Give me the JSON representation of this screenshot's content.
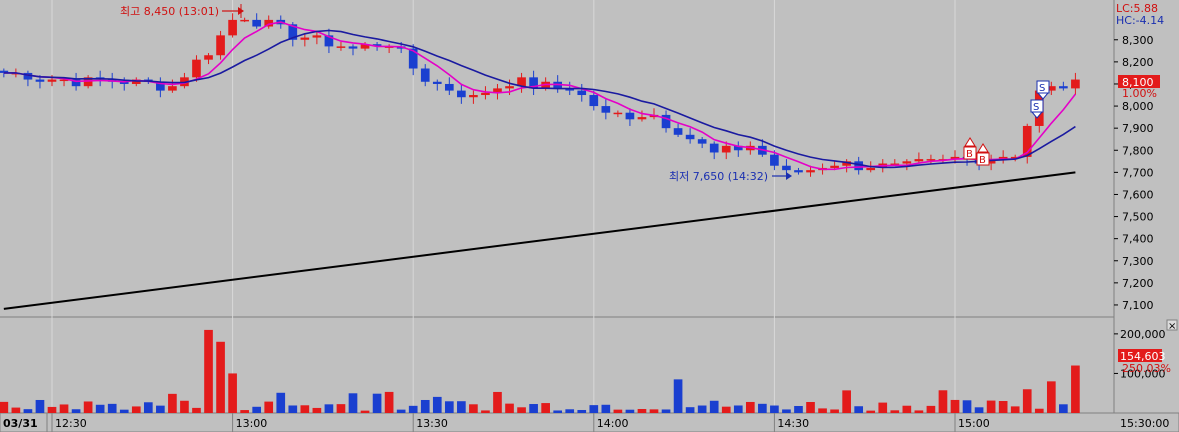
{
  "chart_data": [
    {
      "type": "candlestick",
      "panel": "price",
      "interval_minutes": 2,
      "x_start": "12:22",
      "x_end": "15:20",
      "ylim": [
        7050,
        8480
      ],
      "y_ticks": [
        7100,
        7200,
        7300,
        7400,
        7500,
        7600,
        7700,
        7800,
        7900,
        "8,000",
        8100,
        8200,
        8300
      ],
      "y_tick_labels": [
        "7,100",
        "7,200",
        "7,300",
        "7,400",
        "7,500",
        "7,600",
        "7,700",
        "7,800",
        "7,900",
        "8,000",
        "8,100",
        "8,200",
        "8,300"
      ],
      "series": [
        {
          "name": "candles",
          "anchors": [
            [
              "12:22",
              8150
            ],
            [
              "12:30",
              8120
            ],
            [
              "12:40",
              8110
            ],
            [
              "12:50",
              8090
            ],
            [
              "12:56",
              8250
            ],
            [
              "13:01",
              8420
            ],
            [
              "13:10",
              8320
            ],
            [
              "13:20",
              8260
            ],
            [
              "13:26",
              8290
            ],
            [
              "13:32",
              8120
            ],
            [
              "13:40",
              8040
            ],
            [
              "13:46",
              8110
            ],
            [
              "13:56",
              8080
            ],
            [
              "14:02",
              7960
            ],
            [
              "14:10",
              7960
            ],
            [
              "14:20",
              7780
            ],
            [
              "14:26",
              7820
            ],
            [
              "14:32",
              7690
            ],
            [
              "14:40",
              7740
            ],
            [
              "14:50",
              7720
            ],
            [
              "15:00",
              7760
            ],
            [
              "15:04",
              7760
            ],
            [
              "15:10",
              7780
            ],
            [
              "15:14",
              8060
            ],
            [
              "15:20",
              8100
            ]
          ]
        }
      ],
      "trendline": {
        "from": [
          "12:22",
          7082
        ],
        "to": [
          "15:20",
          7700
        ],
        "color": "#000000"
      },
      "annotations": {
        "high_label": "최고 8,450 (13:01)",
        "low_label": "최저 7,650 (14:32)",
        "buy_markers": [
          "B",
          "B"
        ],
        "sell_markers": [
          "S",
          "S"
        ]
      },
      "right_labels": {
        "lc": "LC:5.88",
        "hc": "HC:-4.14",
        "price_tag": "8,100",
        "pct_tag": "1.00%"
      },
      "colors": {
        "up": "#e31b1b",
        "down": "#1a3fd0",
        "ma_fast": "#e400c8",
        "ma_slow": "#1a1aa0",
        "background": "#c0c0c0"
      }
    },
    {
      "type": "bar",
      "panel": "volume",
      "ylim": [
        0,
        230000
      ],
      "y_tick_labels": [
        "200,000",
        "100,000"
      ],
      "volume_tag": "154,603",
      "pct_tag": "250.03%",
      "spikes": [
        [
          "12:56",
          210000
        ],
        [
          "12:58",
          180000
        ],
        [
          "13:00",
          100000
        ],
        [
          "14:14",
          85000
        ],
        [
          "15:12",
          60000
        ],
        [
          "15:16",
          80000
        ],
        [
          "15:20",
          120000
        ]
      ]
    }
  ],
  "x_axis": {
    "date_label": "03/31",
    "tick_labels": [
      "12:30",
      "13:00",
      "13:30",
      "14:00",
      "14:30",
      "15:00"
    ],
    "end_label": "15:30:00"
  },
  "close_button": "×"
}
